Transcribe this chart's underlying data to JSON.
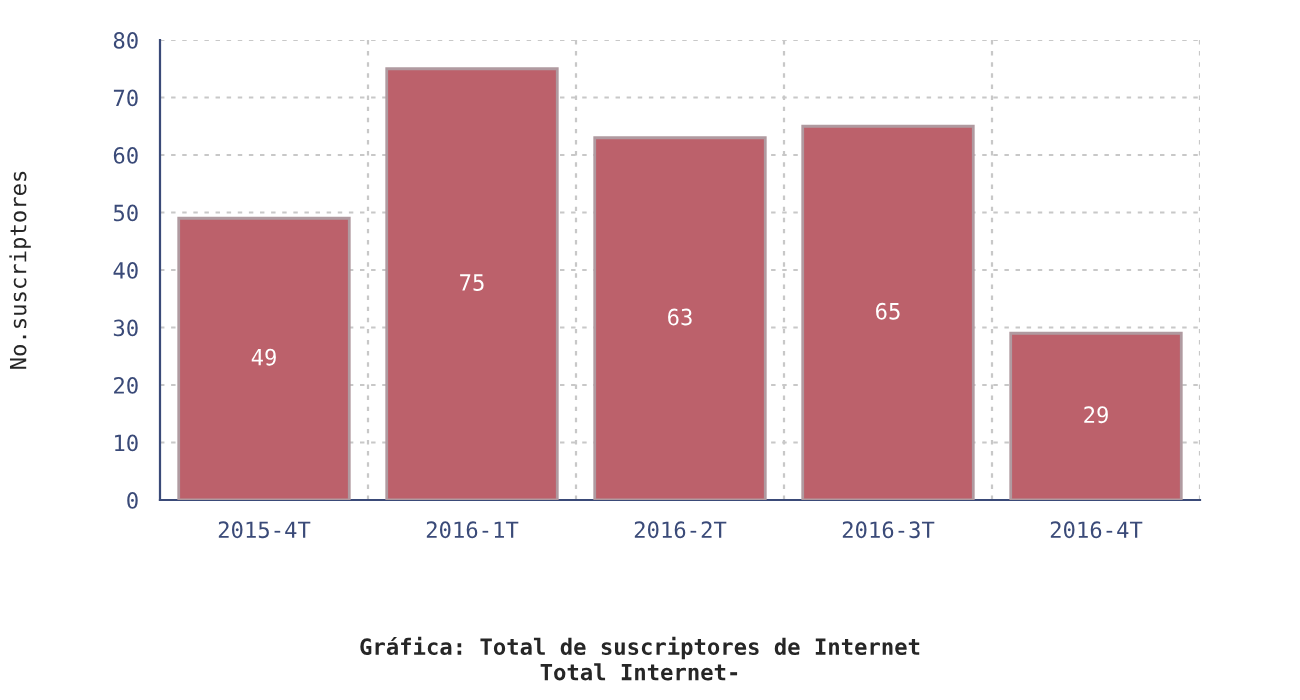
{
  "chart_data": {
    "type": "bar",
    "title": "Gráfica: Total de suscriptores de Internet",
    "subtitle": "Total Internet-",
    "ylabel": "No.suscriptores",
    "categories": [
      "2015-4T",
      "2016-1T",
      "2016-2T",
      "2016-3T",
      "2016-4T"
    ],
    "values": [
      49,
      75,
      63,
      65,
      29
    ],
    "color": "#bc616b",
    "ylim": [
      0,
      80
    ],
    "yticks": [
      0,
      10,
      20,
      30,
      40,
      50,
      60,
      70,
      80
    ],
    "grid": true,
    "data_labels": true,
    "legend": false
  }
}
